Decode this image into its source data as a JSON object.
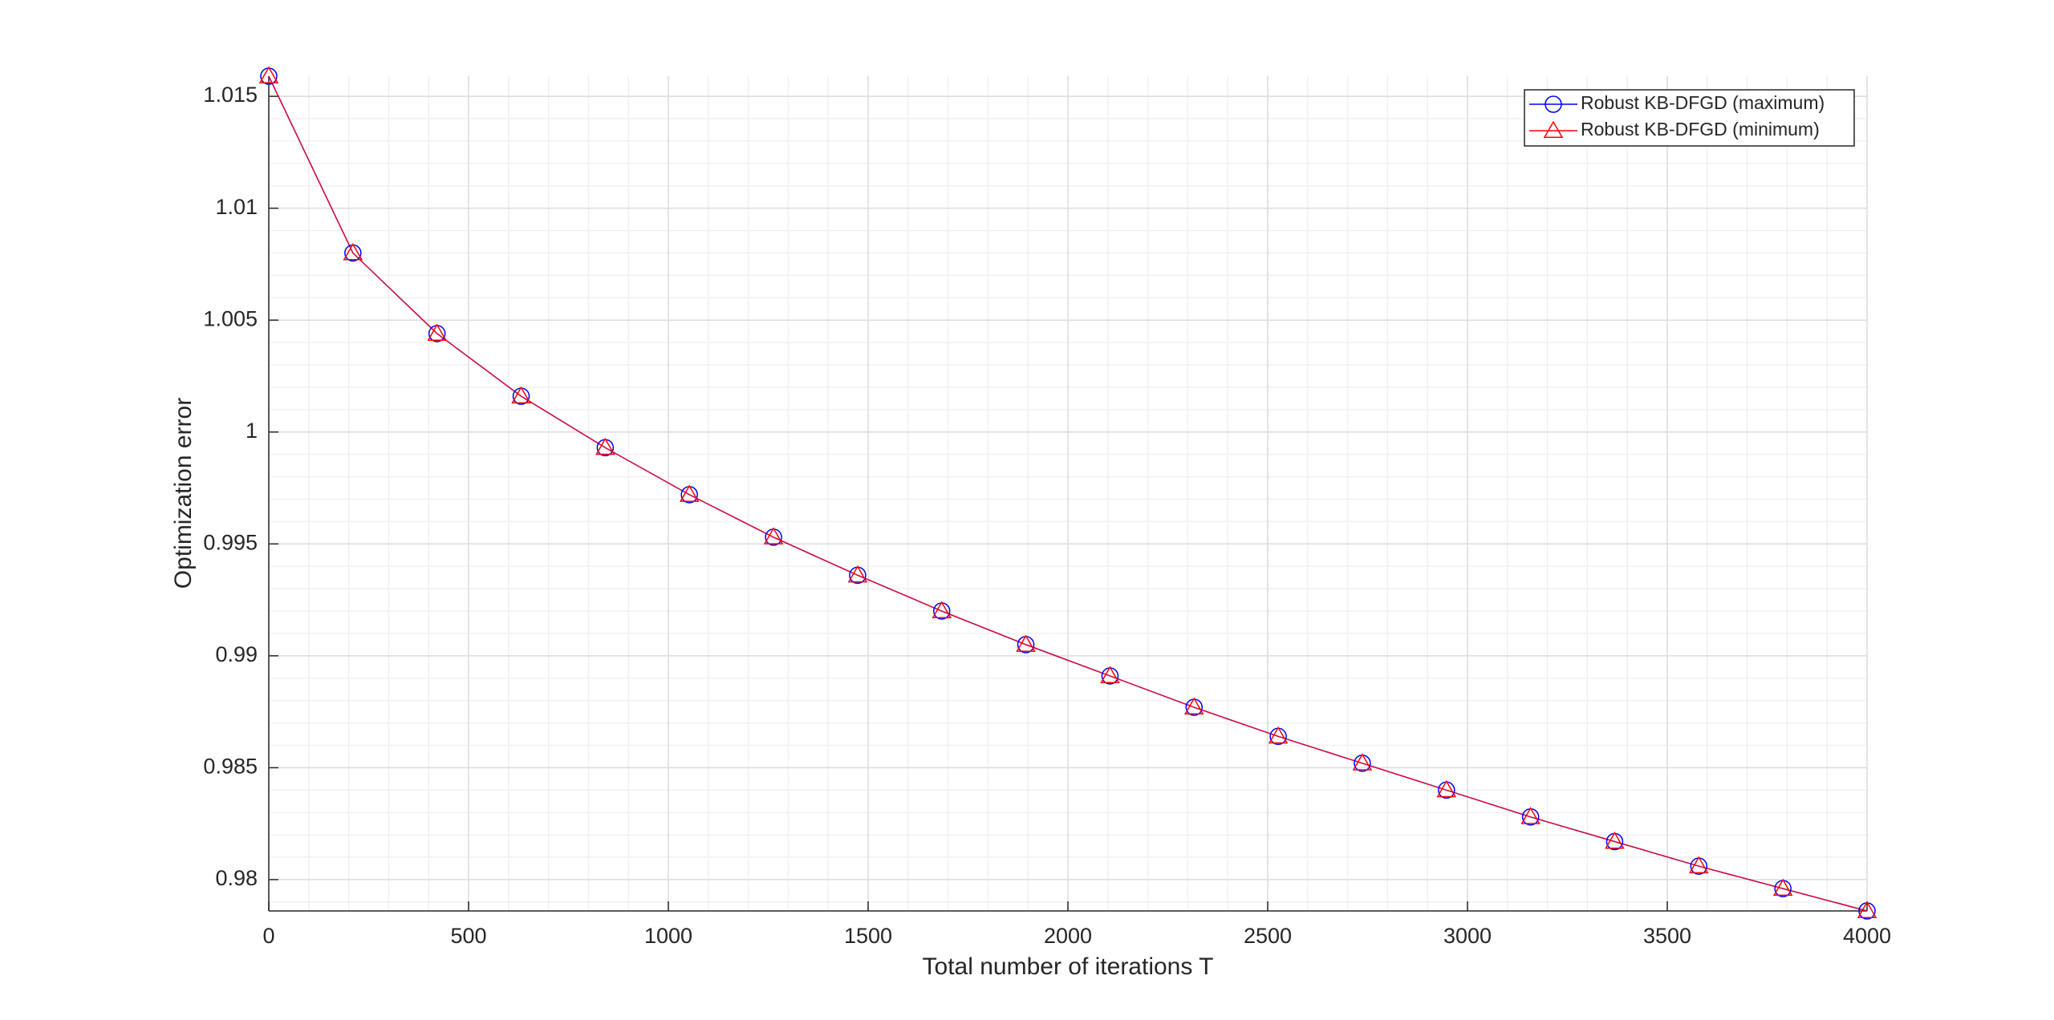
{
  "chart_data": {
    "type": "line",
    "xlabel": "Total number of iterations T",
    "ylabel": "Optimization error",
    "x": [
      0,
      210.5,
      421.1,
      631.6,
      842.1,
      1052.6,
      1263.2,
      1473.7,
      1684.2,
      1894.7,
      2105.3,
      2315.8,
      2526.3,
      2736.8,
      2947.4,
      3157.9,
      3368.4,
      3578.9,
      3789.5,
      4000
    ],
    "series": [
      {
        "name": "Robust KB-DFGD (maximum)",
        "color": "#0000ff",
        "marker": "circle",
        "values": [
          1.0159,
          1.008,
          1.0044,
          1.0016,
          0.9993,
          0.9972,
          0.9953,
          0.9936,
          0.992,
          0.9905,
          0.9891,
          0.9877,
          0.9864,
          0.9852,
          0.984,
          0.9828,
          0.9817,
          0.9806,
          0.9796,
          0.9786
        ]
      },
      {
        "name": "Robust KB-DFGD (minimum)",
        "color": "#ff0000",
        "marker": "triangle",
        "values": [
          1.0159,
          1.008,
          1.0044,
          1.0016,
          0.9993,
          0.9972,
          0.9953,
          0.9936,
          0.992,
          0.9905,
          0.9891,
          0.9877,
          0.9864,
          0.9852,
          0.984,
          0.9828,
          0.9817,
          0.9806,
          0.9796,
          0.9786
        ]
      }
    ],
    "xlim": [
      0,
      4000
    ],
    "xticks": [
      0,
      500,
      1000,
      1500,
      2000,
      2500,
      3000,
      3500,
      4000
    ],
    "ylim": [
      0.9786,
      1.0159
    ],
    "yticks": [
      0.98,
      0.985,
      0.99,
      0.995,
      1,
      1.005,
      1.01,
      1.015
    ],
    "grid": true,
    "minor_grid": true,
    "legend": "top-right"
  }
}
